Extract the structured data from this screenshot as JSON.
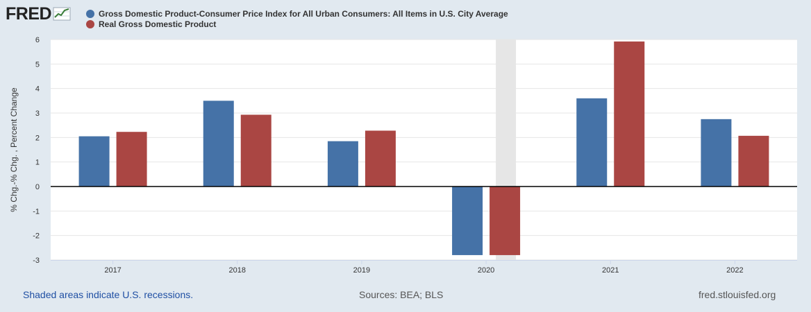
{
  "logo": {
    "text": "FRED",
    "icon": "trend-line-icon"
  },
  "colors": {
    "background": "#e1e9f0",
    "plot_background": "#ffffff",
    "recession_shade": "#e6e6e6",
    "series_1": "#4572a7",
    "series_2": "#aa4643",
    "footer_link": "#1f4fa3"
  },
  "footer": {
    "recession_note": "Shaded areas indicate U.S. recessions.",
    "sources": "Sources: BEA; BLS",
    "site": "fred.stlouisfed.org"
  },
  "chart_data": {
    "type": "bar",
    "title": "",
    "xlabel": "",
    "ylabel": "% Chg.-% Chg. , Percent Change",
    "categories": [
      "2017",
      "2018",
      "2019",
      "2020",
      "2021",
      "2022"
    ],
    "series": [
      {
        "name": "Gross Domestic Product-Consumer Price Index for All Urban Consumers: All Items in U.S. City Average",
        "color": "#4572a7",
        "values": [
          2.05,
          3.5,
          1.85,
          -2.8,
          3.6,
          2.75
        ]
      },
      {
        "name": "Real Gross Domestic Product",
        "color": "#aa4643",
        "values": [
          2.23,
          2.93,
          2.28,
          -2.8,
          5.92,
          2.07
        ]
      }
    ],
    "ylim": [
      -3,
      6
    ],
    "yticks": [
      6,
      5,
      4,
      3,
      2,
      1,
      0,
      -1,
      -2,
      -3
    ],
    "yticklabels": [
      "6",
      "5",
      "4",
      "3",
      "2",
      "1",
      "0",
      "-1",
      "-2",
      "-3"
    ],
    "recessions": [
      {
        "label": "2020",
        "start": "2020",
        "end": "2020"
      }
    ],
    "grid": true,
    "legend_position": "top-left"
  }
}
